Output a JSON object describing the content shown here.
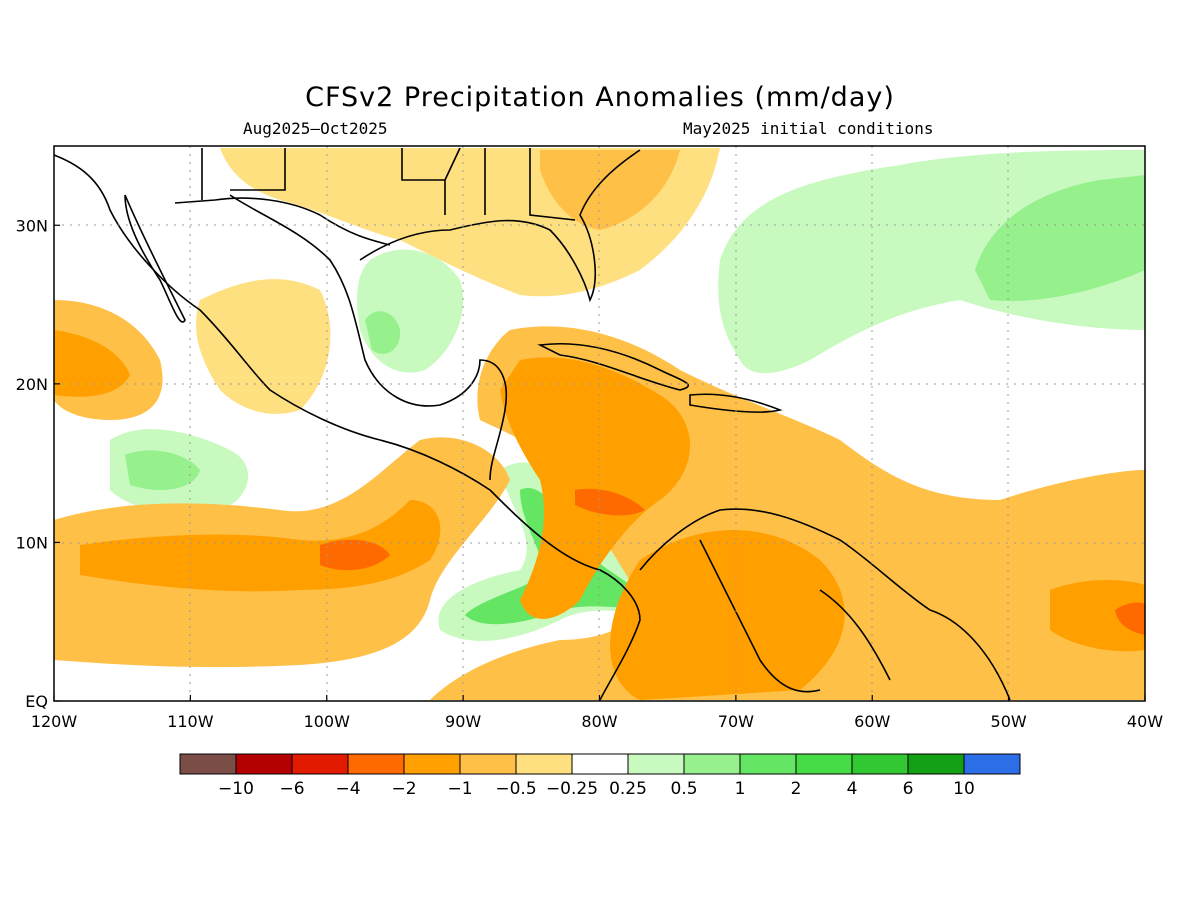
{
  "title": "CFSv2 Precipitation Anomalies (mm/day)",
  "subtitle_left": "Aug2025–Oct2025",
  "subtitle_right": "May2025 initial conditions",
  "map": {
    "lon_range": [
      -120,
      -40
    ],
    "lat_range": [
      0,
      35
    ],
    "lon_labels": [
      "120W",
      "110W",
      "100W",
      "90W",
      "80W",
      "70W",
      "60W",
      "50W",
      "40W"
    ],
    "lat_labels": [
      "EQ",
      "10N",
      "20N",
      "30N"
    ]
  },
  "colorbar": {
    "colors": [
      "#7b4d47",
      "#b40000",
      "#e21a00",
      "#ff6a00",
      "#ffa000",
      "#ffc048",
      "#ffe080",
      "#ffffff",
      "#c8fac0",
      "#96f08c",
      "#64e664",
      "#46dc46",
      "#32c832",
      "#14a014",
      "#2b6ee6"
    ],
    "labels": [
      "−10",
      "−6",
      "−4",
      "−2",
      "−1",
      "−0.5",
      "−0.25",
      "0.25",
      "0.5",
      "1",
      "2",
      "4",
      "6",
      "10"
    ]
  }
}
